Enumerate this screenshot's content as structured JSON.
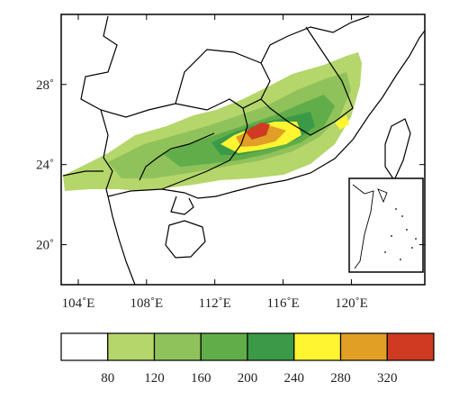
{
  "map": {
    "lat_axis": {
      "ticks": [
        {
          "value": 28,
          "label": "28˚"
        },
        {
          "value": 24,
          "label": "24˚"
        },
        {
          "value": 20,
          "label": "20˚"
        }
      ]
    },
    "lon_axis": {
      "ticks": [
        {
          "value": 104,
          "label": "104˚E"
        },
        {
          "value": 108,
          "label": "108˚E"
        },
        {
          "value": 112,
          "label": "112˚E"
        },
        {
          "value": 116,
          "label": "116˚E"
        },
        {
          "value": 120,
          "label": "120˚E"
        }
      ]
    },
    "extent": {
      "lon": [
        103,
        124.3
      ],
      "lat": [
        18,
        31.5
      ]
    }
  },
  "colorbar": {
    "colors": [
      "#ffffff",
      "#b5d66b",
      "#8fc25a",
      "#61ad4a",
      "#3b9a47",
      "#fff531",
      "#e19f26",
      "#ce3b22"
    ],
    "labels": [
      "80",
      "120",
      "160",
      "200",
      "240",
      "280",
      "320"
    ]
  }
}
